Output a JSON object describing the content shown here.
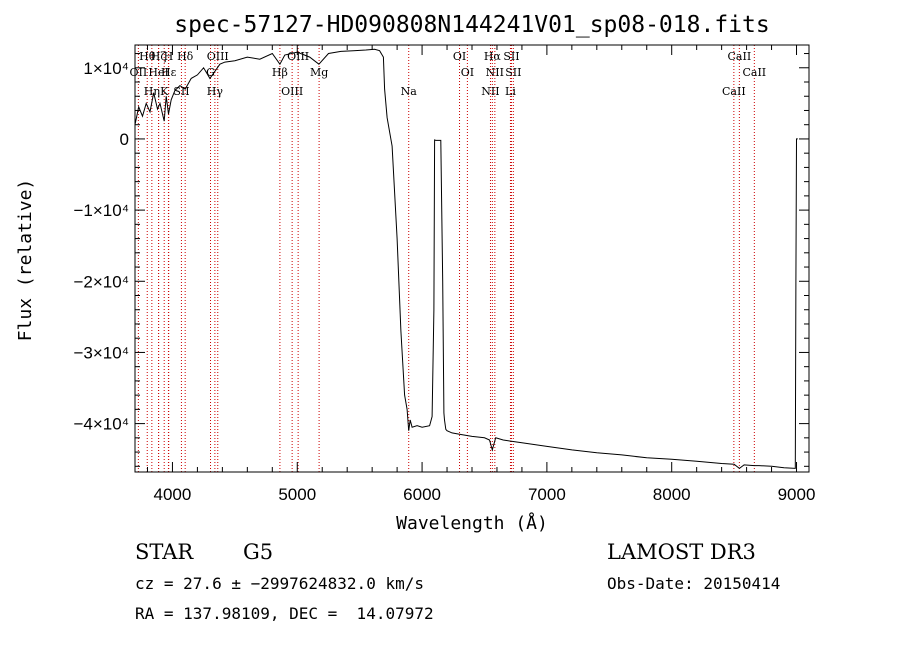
{
  "colors": {
    "spectrum": "#000000",
    "line_marker": "#cc0000",
    "background": "#ffffff"
  },
  "chart_data": {
    "type": "line",
    "title": "spec-57127-HD090808N144241V01_sp08-018.fits",
    "xlabel": "Wavelength (Å)",
    "ylabel": "Flux (relative)",
    "xlim": [
      3700,
      9100
    ],
    "ylim": [
      -46800,
      13200
    ],
    "x_ticks": [
      {
        "value": 4000,
        "label": "4000"
      },
      {
        "value": 5000,
        "label": "5000"
      },
      {
        "value": 6000,
        "label": "6000"
      },
      {
        "value": 7000,
        "label": "7000"
      },
      {
        "value": 8000,
        "label": "8000"
      },
      {
        "value": 9000,
        "label": "9000"
      }
    ],
    "y_ticks": [
      {
        "value": 10000,
        "label": "1×10⁴"
      },
      {
        "value": 0,
        "label": "0"
      },
      {
        "value": -10000,
        "label": "−1×10⁴"
      },
      {
        "value": -20000,
        "label": "−2×10⁴"
      },
      {
        "value": -30000,
        "label": "−3×10⁴"
      },
      {
        "value": -40000,
        "label": "−4×10⁴"
      }
    ],
    "series": [
      {
        "name": "flux",
        "x": [
          3700,
          3730,
          3760,
          3790,
          3820,
          3850,
          3880,
          3900,
          3934,
          3950,
          3968,
          3990,
          4020,
          4060,
          4102,
          4150,
          4200,
          4250,
          4300,
          4340,
          4380,
          4420,
          4500,
          4600,
          4700,
          4800,
          4861,
          4900,
          5000,
          5100,
          5173,
          5250,
          5350,
          5450,
          5550,
          5620,
          5660,
          5690,
          5700,
          5720,
          5760,
          5800,
          5830,
          5860,
          5880,
          5893,
          5905,
          5920,
          5960,
          6000,
          6060,
          6080,
          6095,
          6100,
          6110,
          6150,
          6165,
          6175,
          6180,
          6190,
          6200,
          6240,
          6300,
          6400,
          6500,
          6540,
          6563,
          6590,
          6650,
          6800,
          7000,
          7200,
          7400,
          7600,
          7800,
          8000,
          8200,
          8400,
          8500,
          8542,
          8580,
          8662,
          8700,
          8800,
          8900,
          8990,
          8995,
          9000,
          9005,
          9010
        ],
        "y": [
          2000,
          4500,
          3200,
          5000,
          3800,
          6500,
          4200,
          5000,
          2500,
          6000,
          3500,
          5500,
          6800,
          7500,
          7000,
          8500,
          9000,
          10000,
          8500,
          9500,
          10500,
          10800,
          11000,
          11500,
          11200,
          12000,
          10500,
          11800,
          12200,
          11500,
          10500,
          12000,
          12300,
          12400,
          12500,
          12600,
          12400,
          11500,
          7000,
          3000,
          -1000,
          -14000,
          -27000,
          -36000,
          -38000,
          -41000,
          -39500,
          -40500,
          -40300,
          -40500,
          -40300,
          -39000,
          -24000,
          -150,
          -200,
          -200,
          -20000,
          -38500,
          -39500,
          -40800,
          -41000,
          -41300,
          -41500,
          -41800,
          -42000,
          -42300,
          -43700,
          -42000,
          -42300,
          -42700,
          -43200,
          -43700,
          -44100,
          -44400,
          -44800,
          -45000,
          -45300,
          -45600,
          -45700,
          -46300,
          -45800,
          -45900,
          -45900,
          -46000,
          -46200,
          -46300,
          -20000,
          0,
          0,
          0
        ]
      }
    ],
    "line_markers": [
      {
        "name": "Hθ",
        "wavelength": 3798
      },
      {
        "name": "OII",
        "wavelength": 3727
      },
      {
        "name": "Hη",
        "wavelength": 3835
      },
      {
        "name": "Hζ",
        "wavelength": 3889
      },
      {
        "name": "HeI",
        "wavelength": 3889
      },
      {
        "name": "K",
        "wavelength": 3934
      },
      {
        "name": "H",
        "wavelength": 3968
      },
      {
        "name": "Hε",
        "wavelength": 3970
      },
      {
        "name": "SII",
        "wavelength": 4072
      },
      {
        "name": "Hδ",
        "wavelength": 4102
      },
      {
        "name": "G",
        "wavelength": 4305
      },
      {
        "name": "Hγ",
        "wavelength": 4340
      },
      {
        "name": "OIII",
        "wavelength": 4363
      },
      {
        "name": "Hβ",
        "wavelength": 4861
      },
      {
        "name": "OIII",
        "wavelength": 4959
      },
      {
        "name": "OIII",
        "wavelength": 5007
      },
      {
        "name": "Mg",
        "wavelength": 5175
      },
      {
        "name": "Na",
        "wavelength": 5893
      },
      {
        "name": "OI",
        "wavelength": 6300
      },
      {
        "name": "OI",
        "wavelength": 6363
      },
      {
        "name": "NII",
        "wavelength": 6548
      },
      {
        "name": "Hα",
        "wavelength": 6563
      },
      {
        "name": "NII",
        "wavelength": 6583
      },
      {
        "name": "Li",
        "wavelength": 6708
      },
      {
        "name": "SII",
        "wavelength": 6716
      },
      {
        "name": "SII",
        "wavelength": 6731
      },
      {
        "name": "CaII",
        "wavelength": 8498
      },
      {
        "name": "CaII",
        "wavelength": 8542
      },
      {
        "name": "CaII",
        "wavelength": 8662
      }
    ]
  },
  "info": {
    "object_class": "STAR",
    "subclass": "G5",
    "survey": "LAMOST DR3",
    "redshift_line": "cz = 27.6 ± −2997624832.0 km/s",
    "obs_date_line": "Obs-Date: 20150414",
    "coord_line": "RA = 137.98109, DEC =  14.07972"
  }
}
